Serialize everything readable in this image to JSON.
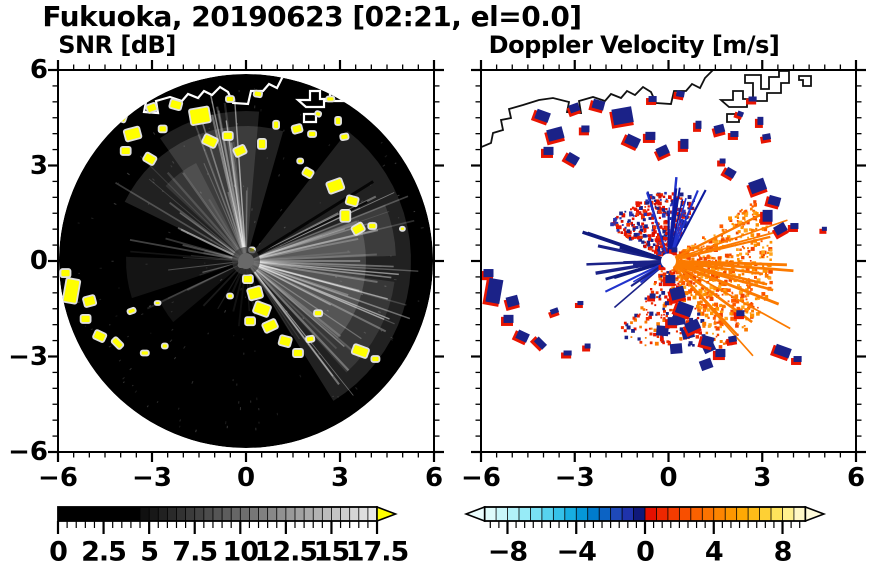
{
  "title": "Fukuoka, 20190623 [02:21, el=0.0]",
  "panels": {
    "snr": {
      "subtitle": "SNR [dB]"
    },
    "doppler": {
      "subtitle": "Doppler Velocity [m/s]"
    }
  },
  "axes": {
    "range_km": [
      -6,
      6
    ],
    "major_step": 3,
    "minor_step": 0.5,
    "x_ticks": [
      "−6",
      "−3",
      "0",
      "3",
      "6"
    ],
    "x_tick_values": [
      -6,
      -3,
      0,
      3,
      6
    ],
    "y_ticks": [
      "6",
      "3",
      "0",
      "−3",
      "−6"
    ],
    "y_tick_values": [
      6,
      3,
      0,
      -3,
      -6
    ]
  },
  "colorbars": {
    "snr": {
      "labels": [
        "0",
        "2.5",
        "5",
        "7.5",
        "10",
        "12.5",
        "15",
        "17.5"
      ],
      "values": [
        0,
        2.5,
        5,
        7.5,
        10,
        12.5,
        15,
        17.5
      ],
      "min": 0,
      "max": 17.5,
      "cell": 0.5,
      "black_until": 5,
      "overflow_color": "#ffff00"
    },
    "doppler": {
      "labels": [
        "−8",
        "−4",
        "0",
        "4",
        "8"
      ],
      "values": [
        -8,
        -4,
        0,
        4,
        8
      ],
      "min": -9.33,
      "max": 9.33,
      "neg_colors": [
        "#defbfb",
        "#c9f7fa",
        "#b2f2f9",
        "#97ebf7",
        "#79e1f4",
        "#57d3ef",
        "#35c2e9",
        "#17aee1",
        "#0597d8",
        "#007ccd",
        "#0c63c4",
        "#1e49b9",
        "#1f33ab",
        "#10197a"
      ],
      "pos_colors": [
        "#e41000",
        "#ee2800",
        "#f43c00",
        "#f84f00",
        "#fb6100",
        "#fc7300",
        "#fd8500",
        "#fd9700",
        "#fea904",
        "#febc18",
        "#fed034",
        "#fee35c",
        "#fff08e",
        "#fff8c6"
      ],
      "under_color": "#eafdfd",
      "over_color": "#fffbda"
    }
  },
  "colors": {
    "background": "#ffffff",
    "axis": "#000000",
    "snr_echo_yellow": "#ffff00",
    "snr_echo_halo": "#e0e0e0",
    "snr_fan_gray": "#ffffff",
    "snr_disk_black": "#000000",
    "coast_left": "#ffffff",
    "coast_right": "#111111",
    "doppler_navy": "#1b2288",
    "doppler_blue": "#2133cc",
    "doppler_red": "#e81400",
    "doppler_orange": "#fb7a00",
    "doppler_orange_bright": "#ff9100",
    "center_disk_left": "#696969",
    "center_dot_right": "#ffffff"
  },
  "chart_data": {
    "type": "radar_ppi_pair",
    "site": "Fukuoka",
    "date": "20190623",
    "time": "02:21",
    "elevation_deg": 0.0,
    "x_range_km": [
      -6,
      6
    ],
    "y_range_km": [
      -6,
      6
    ],
    "x_ticks_km": [
      -6,
      -3,
      0,
      3,
      6
    ],
    "y_ticks_km": [
      6,
      3,
      0,
      -3,
      -6
    ],
    "scan_radius_km": 6,
    "panels": [
      {
        "title": "SNR [dB]",
        "colormap": "grayscale black(0) to white(17.5), yellow = above max",
        "scale_min": 0,
        "scale_max": 17.5,
        "scale_ticks": [
          0,
          2.5,
          5,
          7.5,
          10,
          12.5,
          15,
          17.5
        ],
        "description": "black 6 km PPI disk, gray ground-clutter fan radiating from center, yellow strong echoes, white coastline across north"
      },
      {
        "title": "Doppler Velocity [m/s]",
        "colormap": "cyan-blue-navy for negative, red-orange-cream for positive",
        "scale_min": -9.33,
        "scale_max": 9.33,
        "scale_ticks": [
          -8,
          -4,
          0,
          4,
          8
        ],
        "description": "white background, black coastline, central burst of positive (orange) velocities east-southeast and negative (navy) patches, scattered navy echoes with red fringes"
      }
    ],
    "echo_cells_km": [
      [
        -4.03,
        4.56,
        0.45,
        0.32,
        20
      ],
      [
        -3.62,
        3.99,
        0.51,
        0.38,
        -15
      ],
      [
        -3.84,
        3.46,
        0.32,
        0.26,
        0
      ],
      [
        -3.07,
        3.21,
        0.38,
        0.29,
        30
      ],
      [
        -3.01,
        4.81,
        0.32,
        0.26,
        -20
      ],
      [
        -2.66,
        4.15,
        0.26,
        0.22,
        0
      ],
      [
        -2.24,
        4.91,
        0.38,
        0.29,
        15
      ],
      [
        -1.47,
        4.56,
        0.64,
        0.51,
        -10
      ],
      [
        -1.15,
        3.77,
        0.45,
        0.32,
        25
      ],
      [
        -0.58,
        3.93,
        0.32,
        0.26,
        0
      ],
      [
        -0.51,
        5.09,
        0.26,
        0.19,
        0
      ],
      [
        -0.19,
        3.46,
        0.38,
        0.29,
        -25
      ],
      [
        0.38,
        5.25,
        0.26,
        0.19,
        10
      ],
      [
        0.51,
        3.68,
        0.26,
        0.32,
        0
      ],
      [
        0.96,
        4.28,
        0.19,
        0.26,
        0
      ],
      [
        1.63,
        4.15,
        0.32,
        0.26,
        -15
      ],
      [
        2.11,
        3.99,
        0.26,
        0.19,
        0
      ],
      [
        2.3,
        4.62,
        0.19,
        0.16,
        20
      ],
      [
        2.69,
        5.09,
        0.26,
        0.16,
        0
      ],
      [
        2.94,
        4.4,
        0.19,
        0.26,
        0
      ],
      [
        3.14,
        3.9,
        0.26,
        0.19,
        -10
      ],
      [
        1.73,
        3.14,
        0.19,
        0.16,
        0
      ],
      [
        1.98,
        2.77,
        0.32,
        0.26,
        30
      ],
      [
        2.85,
        2.36,
        0.51,
        0.38,
        -20
      ],
      [
        3.39,
        1.89,
        0.38,
        0.29,
        15
      ],
      [
        3.17,
        1.42,
        0.32,
        0.38,
        0
      ],
      [
        3.58,
        1.01,
        0.38,
        0.29,
        -30
      ],
      [
        4.03,
        1.1,
        0.26,
        0.19,
        0
      ],
      [
        4.99,
        1.01,
        0.16,
        0.13,
        0
      ],
      [
        -5.76,
        -0.38,
        0.32,
        0.26,
        0
      ],
      [
        -5.57,
        -0.94,
        0.45,
        0.77,
        10
      ],
      [
        -4.99,
        -1.26,
        0.38,
        0.32,
        -15
      ],
      [
        -5.12,
        -1.82,
        0.32,
        0.26,
        0
      ],
      [
        -4.67,
        -2.36,
        0.38,
        0.29,
        25
      ],
      [
        -4.1,
        -2.58,
        0.38,
        0.22,
        45
      ],
      [
        -3.23,
        -2.89,
        0.26,
        0.16,
        0
      ],
      [
        -2.59,
        -2.67,
        0.19,
        0.16,
        0
      ],
      [
        -3.65,
        -1.57,
        0.26,
        0.16,
        -20
      ],
      [
        -2.82,
        -1.32,
        0.19,
        0.13,
        0
      ],
      [
        -0.51,
        -1.1,
        0.19,
        0.16,
        0
      ],
      [
        0.06,
        -0.57,
        0.32,
        0.26,
        0
      ],
      [
        0.29,
        -1.01,
        0.45,
        0.38,
        -15
      ],
      [
        0.51,
        -1.51,
        0.51,
        0.38,
        20
      ],
      [
        0.13,
        -1.89,
        0.32,
        0.26,
        0
      ],
      [
        0.77,
        -2.04,
        0.45,
        0.32,
        -25
      ],
      [
        1.25,
        -2.52,
        0.38,
        0.32,
        15
      ],
      [
        1.66,
        -2.89,
        0.32,
        0.26,
        0
      ],
      [
        2.05,
        -2.45,
        0.26,
        0.19,
        -10
      ],
      [
        3.65,
        -2.83,
        0.51,
        0.32,
        20
      ],
      [
        4.13,
        -3.08,
        0.26,
        0.19,
        0
      ],
      [
        2.3,
        -1.64,
        0.26,
        0.19,
        0
      ],
      [
        0.19,
        0.35,
        0.19,
        0.16,
        0
      ],
      [
        -0.16,
        -0.13,
        0.16,
        0.13,
        0
      ]
    ]
  }
}
